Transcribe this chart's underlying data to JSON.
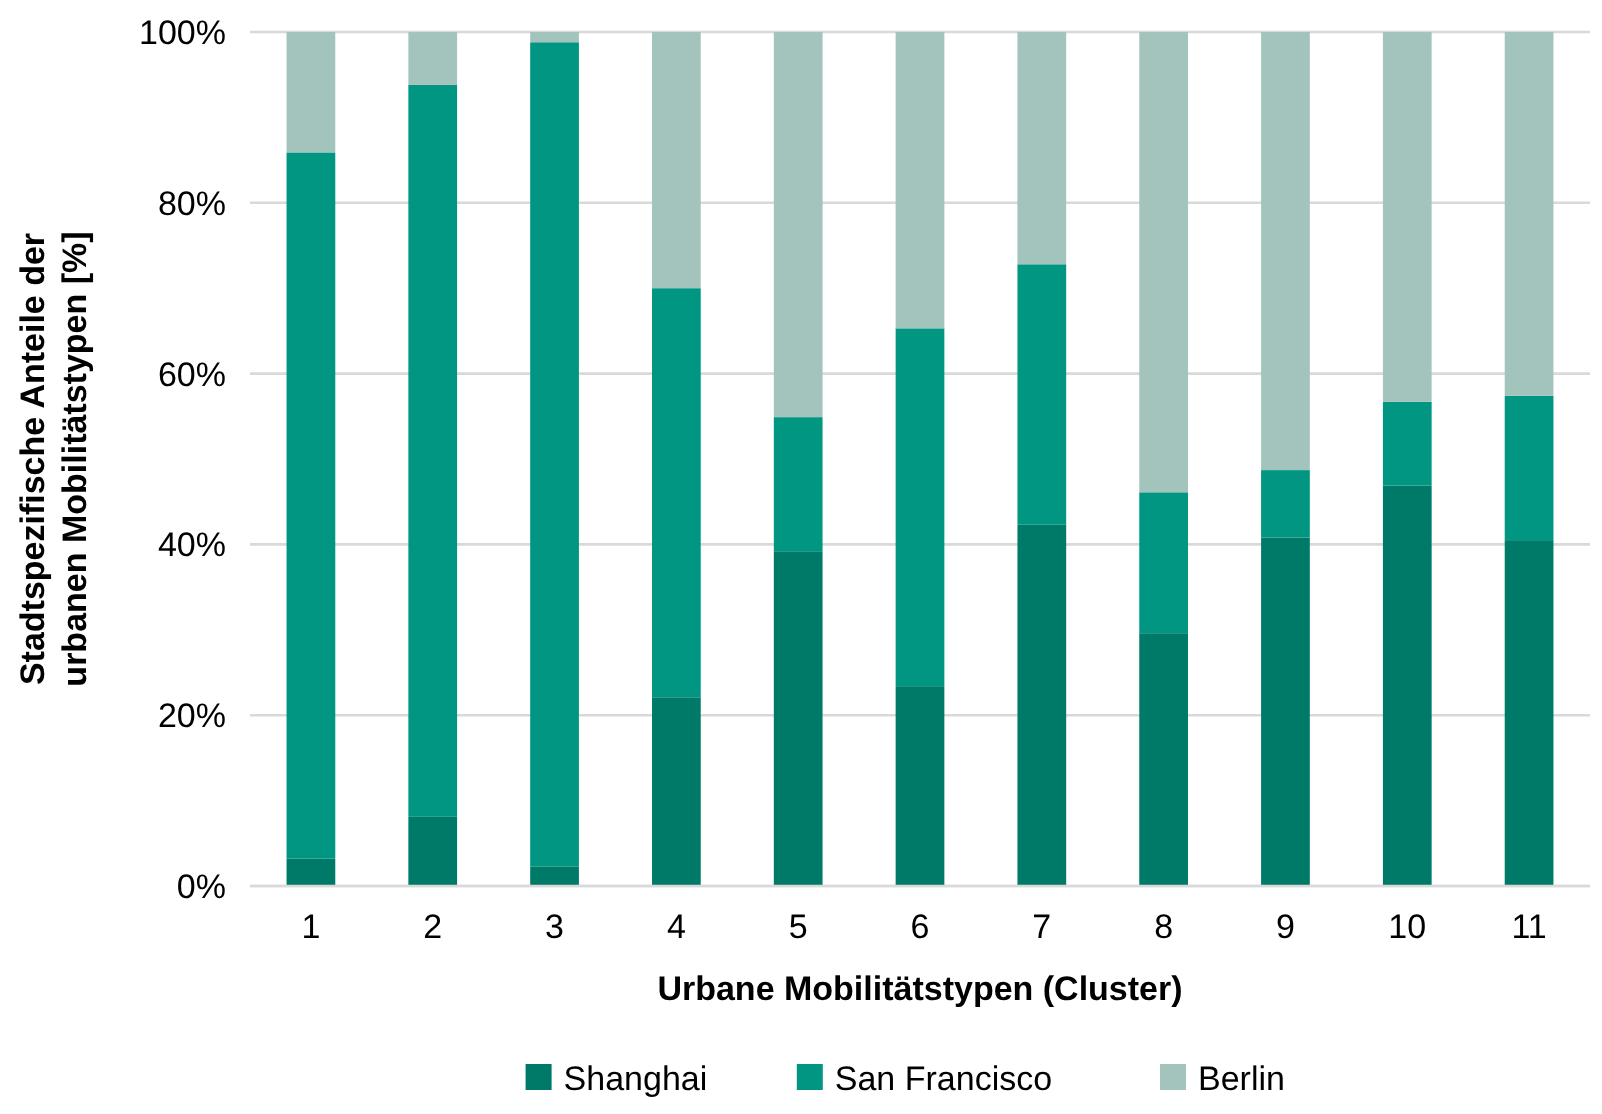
{
  "chart_data": {
    "type": "bar",
    "stacked": true,
    "xlabel": "Urbane Mobilitätstypen (Cluster)",
    "ylabel": "Stadtspezifische Anteile der urbanen Mobilitätstypen [%]",
    "categories": [
      "1",
      "2",
      "3",
      "4",
      "5",
      "6",
      "7",
      "8",
      "9",
      "10",
      "11"
    ],
    "series": [
      {
        "name": "Shanghai",
        "color": "#007a68",
        "values": [
          3.2,
          8.1,
          2.3,
          22.1,
          39.2,
          23.4,
          42.3,
          29.6,
          40.8,
          46.9,
          40.5
        ]
      },
      {
        "name": "San Francisco",
        "color": "#009682",
        "values": [
          82.7,
          85.7,
          96.5,
          47.9,
          15.7,
          41.9,
          30.5,
          16.5,
          7.9,
          9.8,
          16.9
        ]
      },
      {
        "name": "Berlin",
        "color": "#a2c4bc",
        "values": [
          14.1,
          6.2,
          1.2,
          30.0,
          45.1,
          34.7,
          27.2,
          53.9,
          51.3,
          43.3,
          42.6
        ]
      }
    ],
    "ylim": [
      0,
      100
    ],
    "yticks": [
      {
        "value": 0,
        "label": "0%"
      },
      {
        "value": 20,
        "label": "20%"
      },
      {
        "value": 40,
        "label": "40%"
      },
      {
        "value": 60,
        "label": "60%"
      },
      {
        "value": 80,
        "label": "80%"
      },
      {
        "value": 100,
        "label": "100%"
      }
    ],
    "grid": "y",
    "legend": "bottom"
  }
}
